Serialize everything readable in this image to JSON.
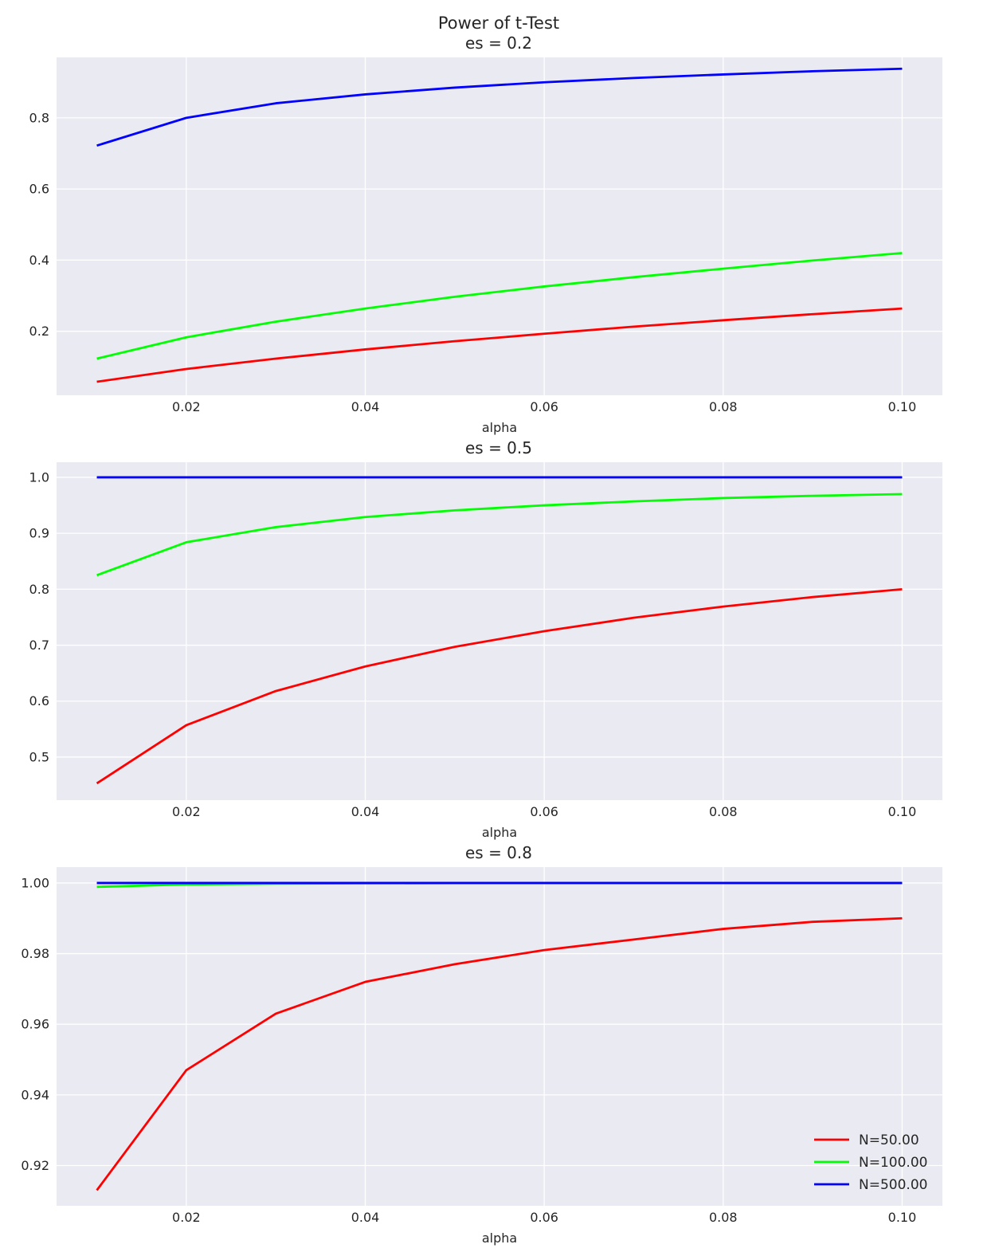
{
  "chart_data": {
    "type": "line",
    "suptitle": "Power of t-Test",
    "legend": {
      "location": "lower-right",
      "panel": 2,
      "entries": [
        {
          "label": "N=50.00",
          "color": "#ff0000"
        },
        {
          "label": "N=100.00",
          "color": "#00ff00"
        },
        {
          "label": "N=500.00",
          "color": "#0000ff"
        }
      ]
    },
    "panels": [
      {
        "title": "es = 0.2",
        "xlabel": "alpha",
        "ylabel": "",
        "grid": true,
        "xlim": [
          0.0055,
          0.1045
        ],
        "ylim": [
          0.02,
          0.97
        ],
        "xticks": [
          0.02,
          0.04,
          0.06,
          0.08,
          0.1
        ],
        "xticklabels": [
          "0.02",
          "0.04",
          "0.06",
          "0.08",
          "0.10"
        ],
        "yticks": [
          0.2,
          0.4,
          0.6,
          0.8
        ],
        "yticklabels": [
          "0.2",
          "0.4",
          "0.6",
          "0.8"
        ],
        "x": [
          0.01,
          0.02,
          0.03,
          0.04,
          0.05,
          0.06,
          0.07,
          0.08,
          0.09,
          0.1
        ],
        "series": [
          {
            "name": "N=50.00",
            "color": "#ff0000",
            "values": [
              0.058,
              0.094,
              0.123,
              0.149,
              0.172,
              0.193,
              0.213,
              0.231,
              0.248,
              0.264
            ]
          },
          {
            "name": "N=100.00",
            "color": "#00ff00",
            "values": [
              0.123,
              0.183,
              0.227,
              0.264,
              0.297,
              0.326,
              0.352,
              0.376,
              0.399,
              0.42
            ]
          },
          {
            "name": "N=500.00",
            "color": "#0000ff",
            "values": [
              0.722,
              0.8,
              0.841,
              0.866,
              0.885,
              0.9,
              0.912,
              0.922,
              0.931,
              0.938
            ]
          }
        ]
      },
      {
        "title": "es = 0.5",
        "xlabel": "alpha",
        "ylabel": "",
        "grid": true,
        "xlim": [
          0.0055,
          0.1045
        ],
        "ylim": [
          0.423,
          1.027
        ],
        "xticks": [
          0.02,
          0.04,
          0.06,
          0.08,
          0.1
        ],
        "xticklabels": [
          "0.02",
          "0.04",
          "0.06",
          "0.08",
          "0.10"
        ],
        "yticks": [
          0.5,
          0.6,
          0.7,
          0.8,
          0.9,
          1.0
        ],
        "yticklabels": [
          "0.5",
          "0.6",
          "0.7",
          "0.8",
          "0.9",
          "1.0"
        ],
        "x": [
          0.01,
          0.02,
          0.03,
          0.04,
          0.05,
          0.06,
          0.07,
          0.08,
          0.09,
          0.1
        ],
        "series": [
          {
            "name": "N=50.00",
            "color": "#ff0000",
            "values": [
              0.453,
              0.557,
              0.618,
              0.662,
              0.697,
              0.725,
              0.749,
              0.769,
              0.786,
              0.8
            ]
          },
          {
            "name": "N=100.00",
            "color": "#00ff00",
            "values": [
              0.825,
              0.884,
              0.911,
              0.929,
              0.941,
              0.95,
              0.957,
              0.963,
              0.967,
              0.97
            ]
          },
          {
            "name": "N=500.00",
            "color": "#0000ff",
            "values": [
              1.0,
              1.0,
              1.0,
              1.0,
              1.0,
              1.0,
              1.0,
              1.0,
              1.0,
              1.0
            ]
          }
        ]
      },
      {
        "title": "es = 0.8",
        "xlabel": "alpha",
        "ylabel": "",
        "grid": true,
        "xlim": [
          0.0055,
          0.1045
        ],
        "ylim": [
          0.9086,
          1.0045
        ],
        "xticks": [
          0.02,
          0.04,
          0.06,
          0.08,
          0.1
        ],
        "xticklabels": [
          "0.02",
          "0.04",
          "0.06",
          "0.08",
          "0.10"
        ],
        "yticks": [
          0.92,
          0.94,
          0.96,
          0.98,
          1.0
        ],
        "yticklabels": [
          "0.92",
          "0.94",
          "0.96",
          "0.98",
          "1.00"
        ],
        "x": [
          0.01,
          0.02,
          0.03,
          0.04,
          0.05,
          0.06,
          0.07,
          0.08,
          0.09,
          0.1
        ],
        "series": [
          {
            "name": "N=50.00",
            "color": "#ff0000",
            "values": [
              0.913,
              0.947,
              0.963,
              0.972,
              0.977,
              0.981,
              0.984,
              0.987,
              0.989,
              0.99
            ]
          },
          {
            "name": "N=100.00",
            "color": "#00ff00",
            "values": [
              0.9989,
              0.9996,
              0.9998,
              0.9999,
              0.99995,
              1.0,
              1.0,
              1.0,
              1.0,
              1.0
            ]
          },
          {
            "name": "N=500.00",
            "color": "#0000ff",
            "values": [
              1.0,
              1.0,
              1.0,
              1.0,
              1.0,
              1.0,
              1.0,
              1.0,
              1.0,
              1.0
            ]
          }
        ]
      }
    ]
  },
  "colors": {
    "axes_background": "#eaeaf2",
    "grid": "#ffffff",
    "text": "#262626"
  }
}
